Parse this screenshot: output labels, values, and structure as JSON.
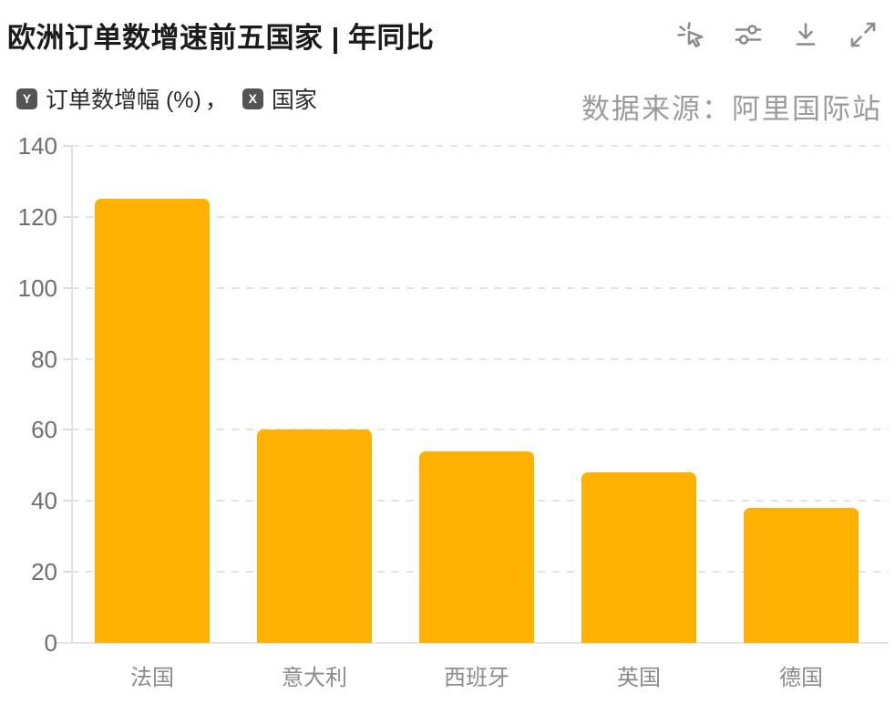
{
  "header": {
    "title": "欧洲订单数增速前五国家 | 年同比"
  },
  "toolbar": {
    "buttons": [
      {
        "name": "interactive-cursor",
        "icon": "click-spark-icon"
      },
      {
        "name": "chart-settings",
        "icon": "sliders-icon"
      },
      {
        "name": "download",
        "icon": "download-icon"
      },
      {
        "name": "fullscreen",
        "icon": "expand-icon"
      }
    ]
  },
  "legend": {
    "y_badge": "Y",
    "y_label": "订单数增幅 (%)",
    "separator": "，",
    "x_badge": "X",
    "x_label": "国家"
  },
  "source": {
    "text": "数据来源：阿里国际站"
  },
  "chart_data": {
    "type": "bar",
    "title": "欧洲订单数增速前五国家 | 年同比",
    "categories": [
      "法国",
      "意大利",
      "西班牙",
      "英国",
      "德国"
    ],
    "values": [
      125,
      60,
      54,
      48,
      38
    ],
    "xlabel": "国家",
    "ylabel": "订单数增幅 (%)",
    "ylim": [
      0,
      140
    ],
    "ytick_step": 20,
    "yticks": [
      0,
      20,
      40,
      60,
      80,
      100,
      120,
      140
    ],
    "grid": true,
    "legend_position": "none",
    "bar_color": "#FFB000"
  },
  "colors": {
    "bar": "#FFB000",
    "grid": "#e3e3e3",
    "axis": "#e3e3e3",
    "tick_text": "#6f6f6f",
    "category_text": "#8b8b8b",
    "source_text": "#9b9b9b",
    "icon": "#8c8c8c",
    "badge_bg": "#545454",
    "title_text": "#1b1b1b"
  }
}
